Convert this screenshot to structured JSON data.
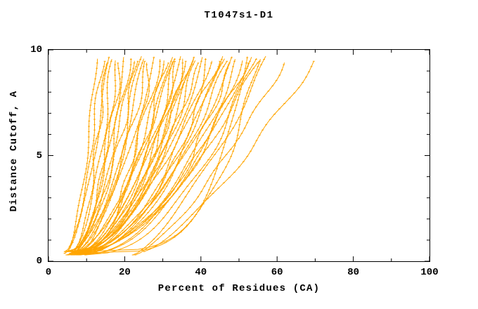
{
  "chart_data": {
    "type": "line",
    "title": "T1047s1-D1",
    "xlabel": "Percent of Residues (CA)",
    "ylabel": "Distance Cutoff, A",
    "xlim": [
      0,
      100
    ],
    "ylim": [
      0,
      10
    ],
    "x_ticks": [
      0,
      20,
      40,
      60,
      80,
      100
    ],
    "x_minor_ticks": [
      10,
      30,
      50,
      70,
      90
    ],
    "y_ticks": [
      0,
      5,
      10
    ],
    "y_minor_ticks": [
      1,
      2,
      3,
      4,
      6,
      7,
      8,
      9
    ],
    "grid": false,
    "legend": "none",
    "frame": "full-box",
    "line_color": "#FFA500",
    "line_width": 1,
    "marker": "plus",
    "y_start": 0.3,
    "y_end": 9.7,
    "series_format": [
      "x_at_bottom",
      "x_at_top",
      "shape_exponent",
      "wiggle_amp",
      "seed"
    ],
    "series": [
      [
        4.0,
        12.5,
        0.5,
        0.5,
        1
      ],
      [
        4.5,
        14.0,
        0.55,
        0.6,
        2
      ],
      [
        5.0,
        15.0,
        0.45,
        0.7,
        3
      ],
      [
        4.2,
        16.0,
        0.6,
        0.5,
        4
      ],
      [
        5.5,
        17.0,
        0.5,
        0.8,
        5
      ],
      [
        4.8,
        18.0,
        0.4,
        0.6,
        6
      ],
      [
        6.0,
        19.0,
        0.55,
        0.7,
        7
      ],
      [
        5.2,
        20.0,
        0.5,
        0.5,
        8
      ],
      [
        4.6,
        21.0,
        0.45,
        0.9,
        9
      ],
      [
        6.5,
        22.0,
        0.6,
        0.6,
        10
      ],
      [
        5.0,
        23.0,
        0.5,
        0.7,
        11
      ],
      [
        5.8,
        24.0,
        0.45,
        0.8,
        12
      ],
      [
        6.2,
        25.0,
        0.55,
        0.6,
        13
      ],
      [
        4.4,
        26.0,
        0.5,
        0.7,
        14
      ],
      [
        6.8,
        27.0,
        0.4,
        0.9,
        15
      ],
      [
        5.4,
        28.0,
        0.55,
        0.6,
        16
      ],
      [
        7.0,
        29.0,
        0.5,
        0.8,
        17
      ],
      [
        5.6,
        30.0,
        0.45,
        0.7,
        18
      ],
      [
        6.0,
        31.0,
        0.5,
        0.8,
        19
      ],
      [
        6.4,
        32.0,
        0.45,
        0.6,
        20
      ],
      [
        5.0,
        33.0,
        0.55,
        0.9,
        21
      ],
      [
        7.2,
        33.5,
        0.5,
        0.7,
        22
      ],
      [
        5.9,
        34.0,
        0.4,
        0.8,
        23
      ],
      [
        6.6,
        35.0,
        0.55,
        0.6,
        24
      ],
      [
        7.5,
        35.5,
        0.5,
        0.9,
        25
      ],
      [
        5.3,
        36.0,
        0.45,
        0.7,
        26
      ],
      [
        6.9,
        37.0,
        0.55,
        0.8,
        27
      ],
      [
        7.8,
        37.5,
        0.5,
        0.6,
        28
      ],
      [
        6.1,
        38.0,
        0.45,
        0.9,
        29
      ],
      [
        7.3,
        39.0,
        0.5,
        0.7,
        30
      ],
      [
        6.7,
        40.0,
        0.55,
        0.8,
        31
      ],
      [
        7.0,
        41.0,
        0.5,
        0.7,
        32
      ],
      [
        7.6,
        42.0,
        0.45,
        0.8,
        33
      ],
      [
        6.3,
        43.0,
        0.55,
        0.6,
        34
      ],
      [
        8.0,
        44.0,
        0.5,
        0.9,
        35
      ],
      [
        6.8,
        45.0,
        0.45,
        0.7,
        36
      ],
      [
        8.2,
        46.0,
        0.55,
        0.8,
        37
      ],
      [
        7.1,
        47.0,
        0.5,
        0.6,
        38
      ],
      [
        8.5,
        48.0,
        0.45,
        0.9,
        39
      ],
      [
        7.4,
        49.0,
        0.55,
        0.7,
        40
      ],
      [
        8.8,
        50.0,
        0.5,
        0.8,
        41
      ],
      [
        7.7,
        51.0,
        0.45,
        0.7,
        42
      ],
      [
        9.0,
        52.0,
        0.55,
        0.8,
        43
      ],
      [
        8.1,
        53.0,
        0.5,
        0.6,
        44
      ],
      [
        9.2,
        54.0,
        0.45,
        0.9,
        45
      ],
      [
        8.4,
        55.0,
        0.55,
        0.7,
        46
      ],
      [
        7.0,
        52.0,
        0.22,
        0.5,
        52
      ],
      [
        8.0,
        55.0,
        0.25,
        0.6,
        53
      ],
      [
        22.0,
        58.0,
        0.75,
        0.8,
        48
      ],
      [
        23.0,
        62.0,
        0.75,
        0.7,
        51
      ],
      [
        25.0,
        70.0,
        0.75,
        0.8,
        50
      ]
    ]
  }
}
